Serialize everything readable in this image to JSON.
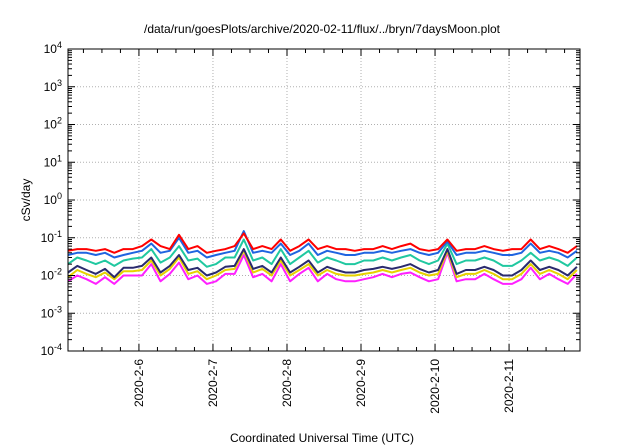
{
  "chart_data": {
    "type": "line",
    "title": "/data/run/goesPlots/archive/2020-02-11/flux/../bryn/7daysMoon.plot",
    "xlabel": "Coordinated Universal Time (UTC)",
    "ylabel": "cSv/day",
    "yscale": "log",
    "ylim": [
      0.0001,
      10000
    ],
    "xlim": [
      "2020-02-05T01:00",
      "2020-02-11T23:00"
    ],
    "grid": true,
    "x_ticks": [
      "2020-2-6",
      "2020-2-7",
      "2020-2-8",
      "2020-2-9",
      "2020-2-10",
      "2020-2-11"
    ],
    "y_ticks": [
      {
        "value": 0.0001,
        "base": "10",
        "exp": "-4"
      },
      {
        "value": 0.001,
        "base": "10",
        "exp": "-3"
      },
      {
        "value": 0.01,
        "base": "10",
        "exp": "-2"
      },
      {
        "value": 0.1,
        "base": "10",
        "exp": "-1"
      },
      {
        "value": 1,
        "base": "10",
        "exp": "0"
      },
      {
        "value": 10,
        "base": "10",
        "exp": "1"
      },
      {
        "value": 100,
        "base": "10",
        "exp": "2"
      },
      {
        "value": 1000,
        "base": "10",
        "exp": "3"
      },
      {
        "value": 10000,
        "base": "10",
        "exp": "4"
      }
    ],
    "x": [
      "2020-02-05T01:00",
      "2020-02-05T04:00",
      "2020-02-05T07:00",
      "2020-02-05T10:00",
      "2020-02-05T13:00",
      "2020-02-05T16:00",
      "2020-02-05T19:00",
      "2020-02-05T22:00",
      "2020-02-06T01:00",
      "2020-02-06T04:00",
      "2020-02-06T07:00",
      "2020-02-06T10:00",
      "2020-02-06T13:00",
      "2020-02-06T16:00",
      "2020-02-06T19:00",
      "2020-02-06T22:00",
      "2020-02-07T01:00",
      "2020-02-07T04:00",
      "2020-02-07T07:00",
      "2020-02-07T10:00",
      "2020-02-07T13:00",
      "2020-02-07T16:00",
      "2020-02-07T19:00",
      "2020-02-07T22:00",
      "2020-02-08T01:00",
      "2020-02-08T04:00",
      "2020-02-08T07:00",
      "2020-02-08T10:00",
      "2020-02-08T13:00",
      "2020-02-08T16:00",
      "2020-02-08T19:00",
      "2020-02-08T22:00",
      "2020-02-09T01:00",
      "2020-02-09T04:00",
      "2020-02-09T07:00",
      "2020-02-09T10:00",
      "2020-02-09T13:00",
      "2020-02-09T16:00",
      "2020-02-09T19:00",
      "2020-02-09T22:00",
      "2020-02-10T01:00",
      "2020-02-10T04:00",
      "2020-02-10T07:00",
      "2020-02-10T10:00",
      "2020-02-10T13:00",
      "2020-02-10T16:00",
      "2020-02-10T19:00",
      "2020-02-10T22:00",
      "2020-02-11T01:00",
      "2020-02-11T04:00",
      "2020-02-11T07:00",
      "2020-02-11T10:00",
      "2020-02-11T13:00",
      "2020-02-11T16:00",
      "2020-02-11T19:00",
      "2020-02-11T22:00"
    ],
    "series": [
      {
        "color": "#ff0000",
        "values": [
          0.045,
          0.05,
          0.05,
          0.045,
          0.05,
          0.04,
          0.05,
          0.05,
          0.06,
          0.09,
          0.06,
          0.05,
          0.12,
          0.05,
          0.06,
          0.04,
          0.045,
          0.05,
          0.06,
          0.13,
          0.05,
          0.06,
          0.05,
          0.09,
          0.045,
          0.06,
          0.09,
          0.05,
          0.06,
          0.05,
          0.05,
          0.045,
          0.05,
          0.05,
          0.06,
          0.05,
          0.06,
          0.07,
          0.05,
          0.045,
          0.05,
          0.09,
          0.045,
          0.05,
          0.05,
          0.06,
          0.05,
          0.045,
          0.05,
          0.05,
          0.09,
          0.05,
          0.06,
          0.05,
          0.04,
          0.06
        ]
      },
      {
        "color": "#1f64e0",
        "values": [
          0.035,
          0.04,
          0.04,
          0.035,
          0.04,
          0.03,
          0.035,
          0.04,
          0.045,
          0.07,
          0.04,
          0.045,
          0.1,
          0.04,
          0.045,
          0.03,
          0.035,
          0.04,
          0.045,
          0.15,
          0.04,
          0.045,
          0.04,
          0.07,
          0.035,
          0.045,
          0.07,
          0.035,
          0.045,
          0.04,
          0.035,
          0.035,
          0.04,
          0.04,
          0.045,
          0.04,
          0.045,
          0.05,
          0.04,
          0.035,
          0.04,
          0.08,
          0.035,
          0.04,
          0.04,
          0.045,
          0.04,
          0.035,
          0.035,
          0.04,
          0.07,
          0.04,
          0.045,
          0.04,
          0.03,
          0.045
        ]
      },
      {
        "color": "#20c8a0",
        "values": [
          0.02,
          0.03,
          0.025,
          0.02,
          0.025,
          0.018,
          0.025,
          0.028,
          0.03,
          0.05,
          0.022,
          0.03,
          0.06,
          0.025,
          0.028,
          0.017,
          0.02,
          0.03,
          0.03,
          0.09,
          0.025,
          0.03,
          0.02,
          0.05,
          0.02,
          0.03,
          0.045,
          0.022,
          0.03,
          0.025,
          0.02,
          0.02,
          0.025,
          0.025,
          0.03,
          0.025,
          0.03,
          0.035,
          0.025,
          0.02,
          0.025,
          0.07,
          0.02,
          0.025,
          0.025,
          0.03,
          0.025,
          0.018,
          0.018,
          0.025,
          0.04,
          0.025,
          0.03,
          0.025,
          0.018,
          0.03
        ]
      },
      {
        "color": "#2a2a6e",
        "values": [
          0.012,
          0.018,
          0.014,
          0.011,
          0.015,
          0.009,
          0.016,
          0.016,
          0.018,
          0.03,
          0.012,
          0.018,
          0.035,
          0.014,
          0.016,
          0.01,
          0.012,
          0.017,
          0.018,
          0.05,
          0.015,
          0.018,
          0.012,
          0.03,
          0.012,
          0.017,
          0.025,
          0.012,
          0.017,
          0.014,
          0.012,
          0.012,
          0.014,
          0.015,
          0.017,
          0.015,
          0.017,
          0.02,
          0.015,
          0.012,
          0.014,
          0.05,
          0.011,
          0.014,
          0.014,
          0.017,
          0.014,
          0.01,
          0.01,
          0.014,
          0.025,
          0.014,
          0.017,
          0.014,
          0.01,
          0.017
        ]
      },
      {
        "color": "#e6d200",
        "values": [
          0.009,
          0.014,
          0.011,
          0.009,
          0.012,
          0.008,
          0.013,
          0.013,
          0.014,
          0.025,
          0.01,
          0.015,
          0.03,
          0.011,
          0.013,
          0.008,
          0.01,
          0.014,
          0.015,
          0.045,
          0.012,
          0.015,
          0.01,
          0.025,
          0.01,
          0.014,
          0.02,
          0.01,
          0.014,
          0.011,
          0.01,
          0.01,
          0.011,
          0.012,
          0.014,
          0.012,
          0.014,
          0.016,
          0.012,
          0.01,
          0.011,
          0.045,
          0.009,
          0.011,
          0.011,
          0.014,
          0.011,
          0.008,
          0.008,
          0.011,
          0.02,
          0.011,
          0.014,
          0.011,
          0.008,
          0.014
        ]
      },
      {
        "color": "#ff20ff",
        "values": [
          0.007,
          0.01,
          0.008,
          0.006,
          0.009,
          0.006,
          0.01,
          0.01,
          0.01,
          0.02,
          0.007,
          0.011,
          0.022,
          0.008,
          0.01,
          0.006,
          0.007,
          0.011,
          0.011,
          0.035,
          0.009,
          0.011,
          0.007,
          0.02,
          0.007,
          0.011,
          0.016,
          0.007,
          0.011,
          0.008,
          0.007,
          0.007,
          0.008,
          0.009,
          0.011,
          0.009,
          0.011,
          0.012,
          0.009,
          0.007,
          0.008,
          0.04,
          0.007,
          0.008,
          0.008,
          0.011,
          0.008,
          0.006,
          0.006,
          0.008,
          0.016,
          0.008,
          0.011,
          0.008,
          0.006,
          0.011
        ]
      }
    ]
  }
}
